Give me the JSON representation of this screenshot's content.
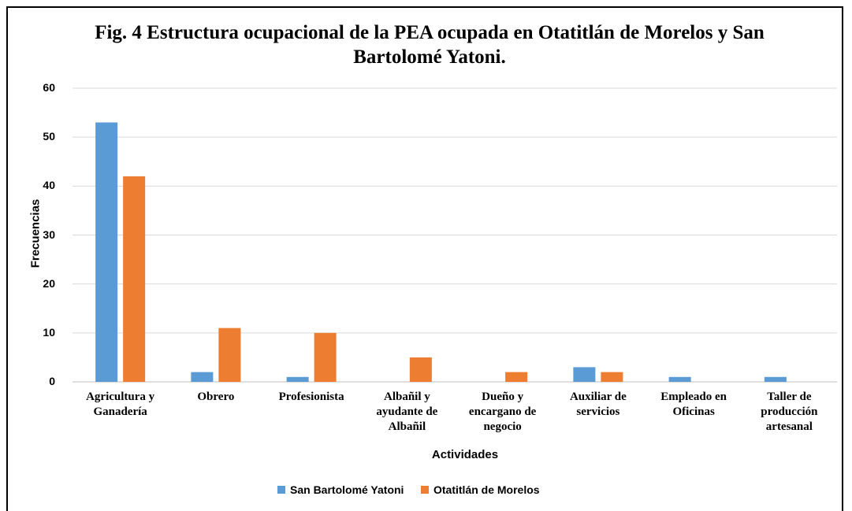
{
  "chart_data": {
    "type": "bar",
    "title": "Fig. 4 Estructura ocupacional de la PEA ocupada en Otatitlán de Morelos y San Bartolomé Yatoni.",
    "x_label": "Actividades",
    "y_label": "Frecuencias",
    "categories": [
      "Agricultura y Ganadería",
      "Obrero",
      "Profesionista",
      "Albañil y ayudante de Albañil",
      "Dueño y encargano de negocio",
      "Auxiliar de servicios",
      "Empleado en Oficinas",
      "Taller de producción artesanal"
    ],
    "series": [
      {
        "name": "San Bartolomé Yatoni",
        "color": "#5b9bd5",
        "values": [
          53,
          2,
          1,
          0,
          0,
          3,
          1,
          1
        ]
      },
      {
        "name": "Otatitlán de Morelos",
        "color": "#ed7d31",
        "values": [
          42,
          11,
          10,
          5,
          2,
          2,
          0,
          0
        ]
      }
    ],
    "ylim": [
      0,
      60
    ],
    "yticks": [
      0,
      10,
      20,
      30,
      40,
      50,
      60
    ],
    "grid": true,
    "legend": "bottom"
  }
}
